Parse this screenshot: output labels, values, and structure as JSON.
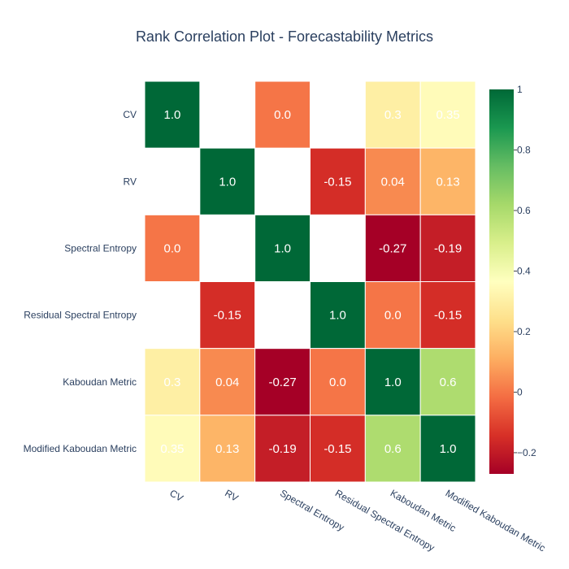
{
  "chart_data": {
    "type": "heatmap",
    "title": "Rank Correlation Plot - Forecastability Metrics",
    "xlabel": "",
    "ylabel": "",
    "rows": [
      "CV",
      "RV",
      "Spectral Entropy",
      "Residual Spectral Entropy",
      "Kaboudan Metric",
      "Modified Kaboudan Metric"
    ],
    "columns": [
      "CV",
      "RV",
      "Spectral Entropy",
      "Residual Spectral Entropy",
      "Kaboudan Metric",
      "Modified Kaboudan Metric"
    ],
    "values": [
      [
        1.0,
        null,
        0.0,
        null,
        0.3,
        0.35
      ],
      [
        null,
        1.0,
        null,
        -0.15,
        0.04,
        0.13
      ],
      [
        0.0,
        null,
        1.0,
        null,
        -0.27,
        -0.19
      ],
      [
        null,
        -0.15,
        null,
        1.0,
        0.0,
        -0.15
      ],
      [
        0.3,
        0.04,
        -0.27,
        0.0,
        1.0,
        0.6
      ],
      [
        0.35,
        0.13,
        -0.19,
        -0.15,
        0.6,
        1.0
      ]
    ],
    "labels": [
      [
        "1.0",
        "",
        "0.0",
        "",
        "0.3",
        "0.35"
      ],
      [
        "",
        "1.0",
        "",
        "-0.15",
        "0.04",
        "0.13"
      ],
      [
        "0.0",
        "",
        "1.0",
        "",
        "-0.27",
        "-0.19"
      ],
      [
        "",
        "-0.15",
        "",
        "1.0",
        "0.0",
        "-0.15"
      ],
      [
        "0.3",
        "0.04",
        "-0.27",
        "0.0",
        "1.0",
        "0.6"
      ],
      [
        "0.35",
        "0.13",
        "-0.19",
        "-0.15",
        "0.6",
        "1.0"
      ]
    ],
    "colorscale": "RdYlGn",
    "zmin": -0.27,
    "zmax": 1.0,
    "colorbar": {
      "ticks": [
        1,
        0.8,
        0.6,
        0.4,
        0.2,
        0,
        -0.2
      ],
      "tick_labels": [
        "1",
        "0.8",
        "0.6",
        "0.4",
        "0.2",
        "0",
        "−0.2"
      ]
    }
  }
}
